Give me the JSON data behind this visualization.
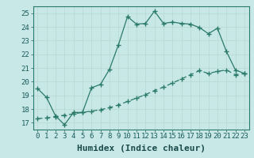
{
  "xlabel": "Humidex (Indice chaleur)",
  "background_color": "#c8e8e8",
  "line_color": "#2a7a6a",
  "grid_color": "#b8d8d0",
  "xlim": [
    -0.5,
    23.5
  ],
  "ylim": [
    16.5,
    25.5
  ],
  "yticks": [
    17,
    18,
    19,
    20,
    21,
    22,
    23,
    24,
    25
  ],
  "xticks": [
    0,
    1,
    2,
    3,
    4,
    5,
    6,
    7,
    8,
    9,
    10,
    11,
    12,
    13,
    14,
    15,
    16,
    17,
    18,
    19,
    20,
    21,
    22,
    23
  ],
  "line1_x": [
    0,
    1,
    2,
    3,
    4,
    5,
    6,
    7,
    8,
    9,
    10,
    11,
    12,
    13,
    14,
    15,
    16,
    17,
    18,
    19,
    20,
    21,
    22,
    23
  ],
  "line1_y": [
    19.5,
    18.85,
    17.5,
    16.85,
    17.75,
    17.75,
    19.55,
    19.8,
    20.9,
    22.7,
    24.75,
    24.2,
    24.25,
    25.15,
    24.25,
    24.35,
    24.25,
    24.2,
    23.95,
    23.5,
    23.9,
    22.2,
    20.85,
    20.6
  ],
  "line2_x": [
    0,
    1,
    2,
    3,
    4,
    5,
    6,
    7,
    8,
    9,
    10,
    11,
    12,
    13,
    14,
    15,
    16,
    17,
    18,
    19,
    20,
    21,
    22,
    23
  ],
  "line2_y": [
    17.3,
    17.35,
    17.45,
    17.55,
    17.65,
    17.75,
    17.85,
    17.95,
    18.1,
    18.3,
    18.55,
    18.8,
    19.05,
    19.35,
    19.6,
    19.9,
    20.2,
    20.5,
    20.8,
    20.6,
    20.75,
    20.85,
    20.5,
    20.6
  ],
  "markersize": 2.5,
  "linewidth": 0.9,
  "xlabel_fontsize": 8,
  "tick_fontsize": 6.5
}
